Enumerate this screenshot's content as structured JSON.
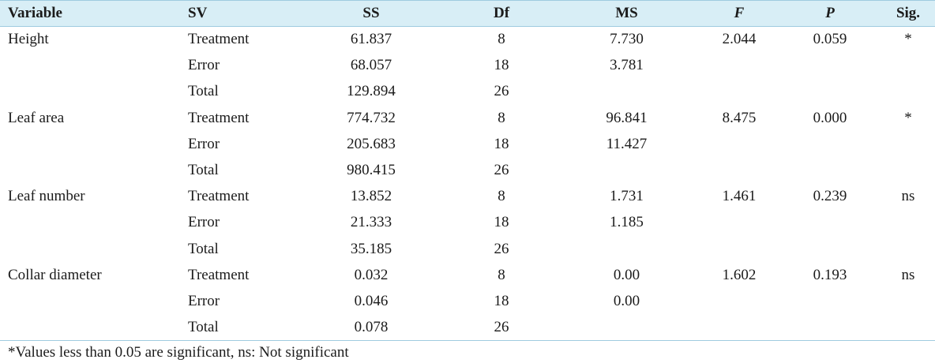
{
  "table": {
    "headers": [
      "Variable",
      "SV",
      "SS",
      "Df",
      "MS",
      "F",
      "P",
      "Sig."
    ],
    "rows": [
      [
        "Height",
        "Treatment",
        "61.837",
        "8",
        "7.730",
        "2.044",
        "0.059",
        "*"
      ],
      [
        "",
        "Error",
        "68.057",
        "18",
        "3.781",
        "",
        "",
        ""
      ],
      [
        "",
        "Total",
        "129.894",
        "26",
        "",
        "",
        "",
        ""
      ],
      [
        "Leaf area",
        "Treatment",
        "774.732",
        "8",
        "96.841",
        "8.475",
        "0.000",
        "*"
      ],
      [
        "",
        "Error",
        "205.683",
        "18",
        "11.427",
        "",
        "",
        ""
      ],
      [
        "",
        "Total",
        "980.415",
        "26",
        "",
        "",
        "",
        ""
      ],
      [
        "Leaf number",
        "Treatment",
        "13.852",
        "8",
        "1.731",
        "1.461",
        "0.239",
        "ns"
      ],
      [
        "",
        "Error",
        "21.333",
        "18",
        "1.185",
        "",
        "",
        ""
      ],
      [
        "",
        "Total",
        "35.185",
        "26",
        "",
        "",
        "",
        ""
      ],
      [
        "Collar diameter",
        "Treatment",
        "0.032",
        "8",
        "0.00",
        "1.602",
        "0.193",
        "ns"
      ],
      [
        "",
        "Error",
        "0.046",
        "18",
        "0.00",
        "",
        "",
        ""
      ],
      [
        "",
        "Total",
        "0.078",
        "26",
        "",
        "",
        "",
        ""
      ]
    ]
  },
  "footnote": "*Values less than 0.05 are significant, ns: Not significant",
  "colors": {
    "header_bg": "#d8eef6",
    "rule": "#9fcbe0"
  }
}
